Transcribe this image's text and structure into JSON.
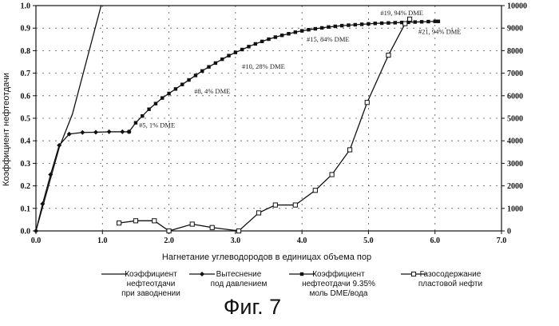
{
  "chart_data": {
    "type": "line",
    "title": "",
    "xlabel": "Нагнетание углеводородов в единицах объема пор",
    "ylabel": "Коэффициент нефтеотдачи",
    "xlim": [
      0,
      7
    ],
    "ylim": [
      0,
      1
    ],
    "y2lim": [
      0,
      10000
    ],
    "x_ticks": [
      "0.0",
      "1.0",
      "2.0",
      "3.0",
      "4.0",
      "5.0",
      "6.0",
      "7.0"
    ],
    "y_ticks": [
      "0.0",
      "0.1",
      "0.2",
      "0.3",
      "0.4",
      "0.5",
      "0.6",
      "0.7",
      "0.8",
      "0.9",
      "1.0"
    ],
    "y2_ticks": [
      "0",
      "1000",
      "2000",
      "3000",
      "4000",
      "5000",
      "6000",
      "7000",
      "8000",
      "9000",
      "10000"
    ],
    "grid": "dashed",
    "series": [
      {
        "name": "Коэффициент нефтеотдачи при заводнении",
        "axis": "left",
        "marker": "none",
        "x": [
          0,
          0.35,
          0.55,
          0.98
        ],
        "y": [
          0,
          0.37,
          0.52,
          1.0
        ]
      },
      {
        "name": "Вытеснение под давлением",
        "axis": "left",
        "marker": "diamond",
        "x": [
          0,
          0.1,
          0.22,
          0.35,
          0.5,
          0.7,
          0.9,
          1.1,
          1.3,
          1.4
        ],
        "y": [
          0,
          0.12,
          0.25,
          0.38,
          0.43,
          0.437,
          0.438,
          0.44,
          0.44,
          0.44
        ]
      },
      {
        "name": "Коэффициент нефтеотдачи 9.35% моль DME/вода",
        "axis": "left",
        "marker": "square",
        "x": [
          1.4,
          1.5,
          1.6,
          1.7,
          1.8,
          1.9,
          2.0,
          2.1,
          2.2,
          2.3,
          2.4,
          2.5,
          2.6,
          2.7,
          2.8,
          2.9,
          3.0,
          3.1,
          3.2,
          3.3,
          3.4,
          3.5,
          3.6,
          3.7,
          3.8,
          3.9,
          4.0,
          4.1,
          4.2,
          4.3,
          4.4,
          4.5,
          4.6,
          4.7,
          4.8,
          4.9,
          5.0,
          5.1,
          5.2,
          5.3,
          5.4,
          5.5,
          5.6,
          5.7,
          5.8,
          5.9,
          6.0,
          6.05
        ],
        "y": [
          0.44,
          0.48,
          0.51,
          0.54,
          0.565,
          0.59,
          0.61,
          0.63,
          0.65,
          0.67,
          0.69,
          0.71,
          0.728,
          0.745,
          0.762,
          0.778,
          0.792,
          0.805,
          0.818,
          0.83,
          0.841,
          0.851,
          0.86,
          0.868,
          0.875,
          0.882,
          0.888,
          0.893,
          0.897,
          0.901,
          0.905,
          0.908,
          0.911,
          0.913,
          0.915,
          0.917,
          0.919,
          0.921,
          0.922,
          0.923,
          0.924,
          0.925,
          0.926,
          0.927,
          0.928,
          0.929,
          0.93,
          0.93
        ]
      },
      {
        "name": "Газосодержание пластовой нефти",
        "axis": "right",
        "marker": "open-square",
        "x": [
          1.25,
          1.5,
          1.78,
          2.0,
          2.35,
          2.65,
          3.05,
          3.35,
          3.6,
          3.9,
          4.2,
          4.45,
          4.72,
          4.98,
          5.3,
          5.55,
          5.62
        ],
        "y": [
          350,
          450,
          450,
          0,
          300,
          150,
          0,
          800,
          1150,
          1150,
          1800,
          2500,
          3600,
          5700,
          7800,
          9200,
          9400
        ]
      }
    ],
    "annotations": [
      {
        "text": "#5, 1% DME",
        "x": 1.55,
        "y": 0.46
      },
      {
        "text": "#8, 4% DME",
        "x": 2.38,
        "y": 0.61
      },
      {
        "text": "#10, 28% DME",
        "x": 3.1,
        "y": 0.72
      },
      {
        "text": "#15, 84% DME",
        "x": 4.07,
        "y": 0.84
      },
      {
        "text": "#19, 94% DME",
        "x": 5.18,
        "y": 0.958
      },
      {
        "text": "#21, 94% DME",
        "x": 5.75,
        "y": 0.875
      }
    ],
    "legend_position": "bottom",
    "legend": [
      {
        "line1": "Коэффициент",
        "line2": "нефтеотдачи",
        "line3": "при заводнении"
      },
      {
        "line1": "Вытеснение",
        "line2": "под давлением",
        "line3": ""
      },
      {
        "line1": "Коэффициент",
        "line2": "нефтеотдачи 9.35%",
        "line3": "моль DME/вода"
      },
      {
        "line1": "Газосодержание",
        "line2": "пластовой нефти",
        "line3": ""
      }
    ]
  },
  "caption": "Фиг. 7"
}
